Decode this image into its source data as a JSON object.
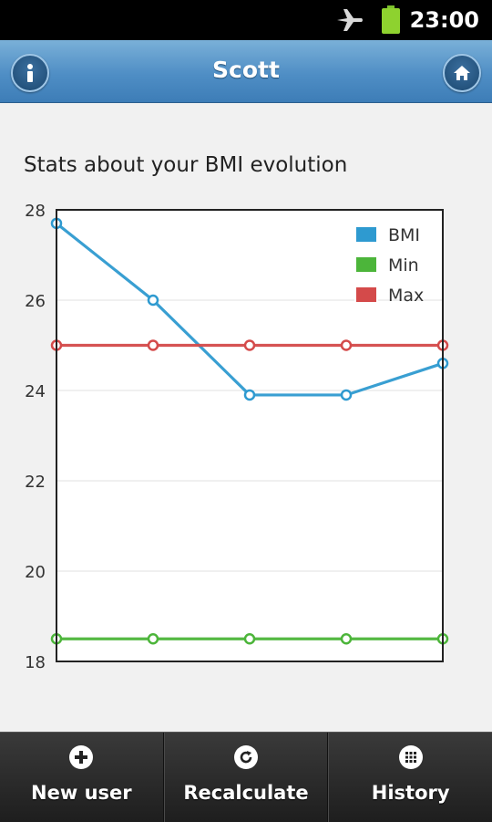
{
  "status_bar": {
    "time": "23:00",
    "icons": [
      "airplane-mode-icon",
      "battery-icon"
    ]
  },
  "header": {
    "title": "Scott",
    "left_icon": "info-icon",
    "right_icon": "home-icon"
  },
  "content": {
    "title": "Stats about your BMI evolution"
  },
  "chart_data": {
    "type": "line",
    "x": [
      1,
      2,
      3,
      4,
      5
    ],
    "series": [
      {
        "name": "BMI",
        "values": [
          27.7,
          26.0,
          23.9,
          23.9,
          24.6
        ],
        "color": "#2e9ad0"
      },
      {
        "name": "Min",
        "values": [
          18.5,
          18.5,
          18.5,
          18.5,
          18.5
        ],
        "color": "#4cb53a"
      },
      {
        "name": "Max",
        "values": [
          25.0,
          25.0,
          25.0,
          25.0,
          25.0
        ],
        "color": "#d44a4a"
      }
    ],
    "ylim": [
      18,
      28
    ],
    "yticks": [
      28,
      26,
      24,
      22,
      20,
      18
    ],
    "grid": true,
    "legend": "top-right",
    "xlabel": "",
    "ylabel": ""
  },
  "bottom_nav": [
    {
      "label": "New user",
      "icon": "plus-icon"
    },
    {
      "label": "Recalculate",
      "icon": "refresh-icon"
    },
    {
      "label": "History",
      "icon": "grid-icon"
    }
  ]
}
